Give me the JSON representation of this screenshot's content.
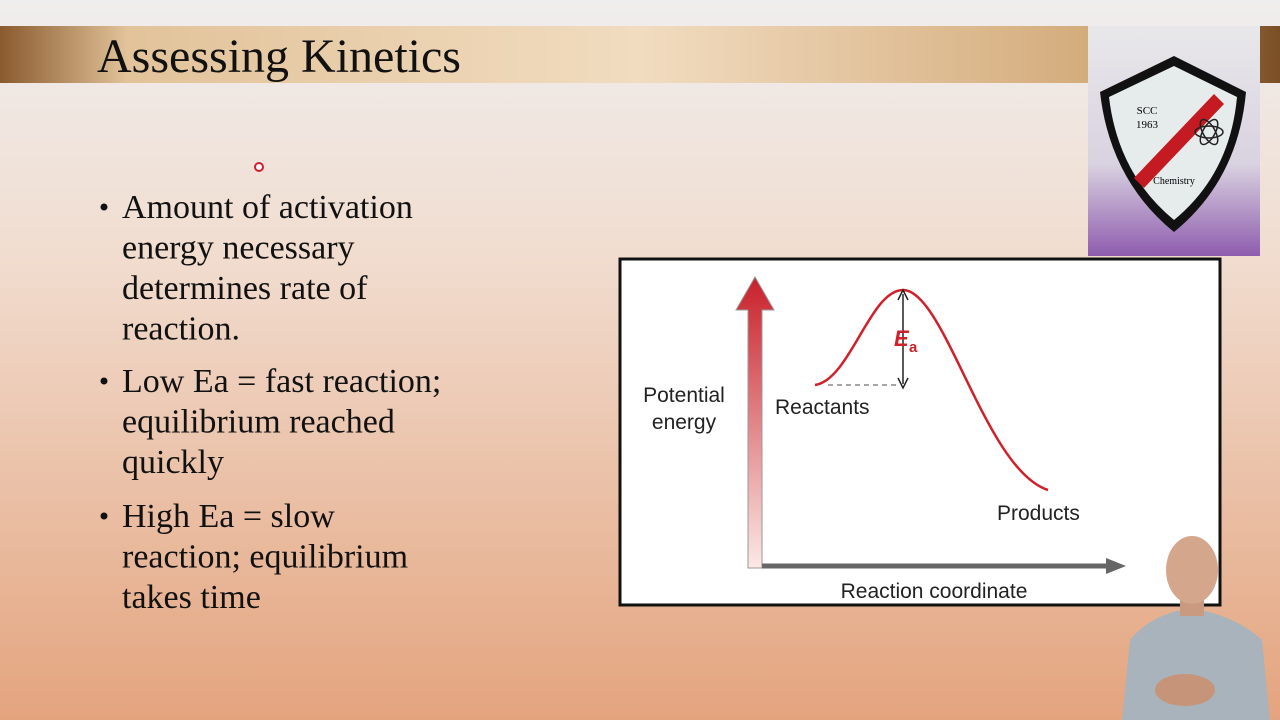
{
  "header": {
    "title": "Assessing Kinetics"
  },
  "bullets": [
    [
      "Amount of activation",
      "energy necessary",
      "determines rate of",
      "reaction."
    ],
    [
      "Low Ea = fast reaction;",
      "equilibrium reached",
      "quickly"
    ],
    [
      "High Ea = slow",
      "reaction; equilibrium",
      "takes time"
    ]
  ],
  "diagram": {
    "y_axis_label": [
      "Potential",
      "energy"
    ],
    "x_axis_label": "Reaction coordinate",
    "reactants": "Reactants",
    "products": "Products",
    "ea_symbol": "E",
    "ea_subscript": "a"
  },
  "logo": {
    "line1": "SCC",
    "line2": "1963",
    "bottom": "Chemistry"
  }
}
